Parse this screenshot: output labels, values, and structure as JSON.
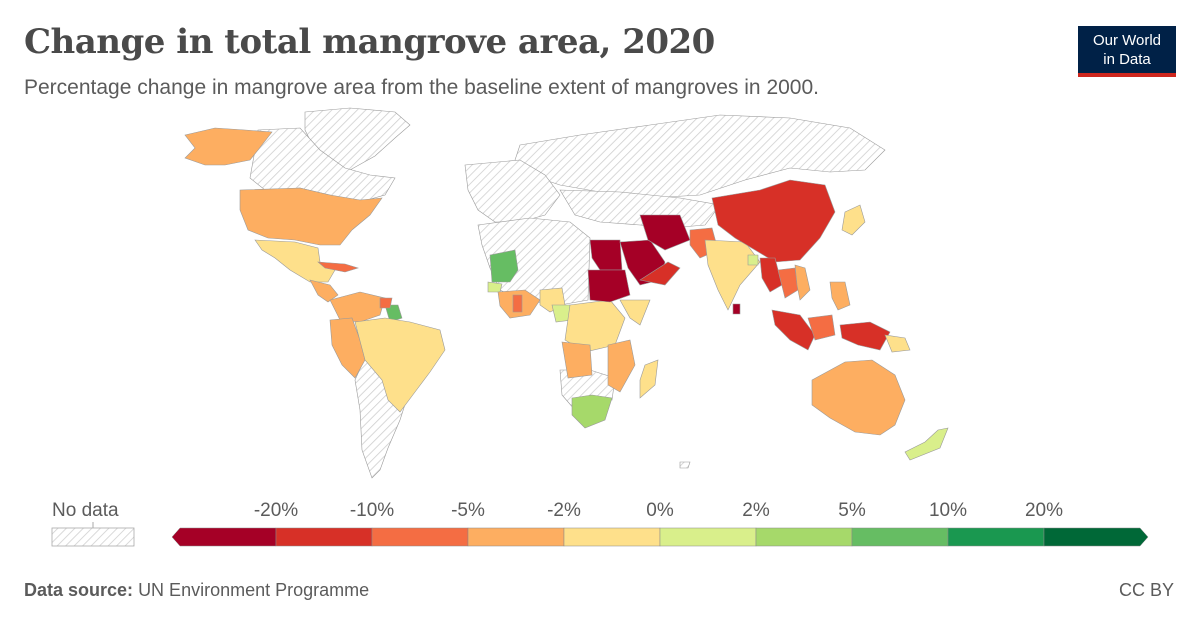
{
  "header": {
    "title": "Change in total mangrove area, 2020",
    "subtitle": "Percentage change in mangrove area from the baseline extent of mangroves in 2000."
  },
  "logo": {
    "line1": "Our World",
    "line2": "in Data"
  },
  "legend": {
    "no_data_label": "No data",
    "ticks": [
      "-20%",
      "-10%",
      "-5%",
      "-2%",
      "0%",
      "2%",
      "5%",
      "10%",
      "20%"
    ],
    "bin_colors": [
      "#a50026",
      "#d73027",
      "#f46d43",
      "#fdae61",
      "#fee08b",
      "#d9ef8b",
      "#a6d96a",
      "#66bd63",
      "#1a9850",
      "#006837"
    ]
  },
  "map_data": {
    "colors": {
      "no_data": "#f2f2f2",
      "less_than_minus_20": "#a50026",
      "minus_20_to_minus_10": "#d73027",
      "minus_10_to_minus_5": "#f46d43",
      "minus_5_to_minus_2": "#fdae61",
      "minus_2_to_0": "#fee08b",
      "0_to_2": "#d9ef8b",
      "2_to_5": "#a6d96a",
      "5_to_10": "#66bd63"
    }
  },
  "footer": {
    "source_label": "Data source:",
    "source_value": "UN Environment Programme",
    "license": "CC BY"
  }
}
